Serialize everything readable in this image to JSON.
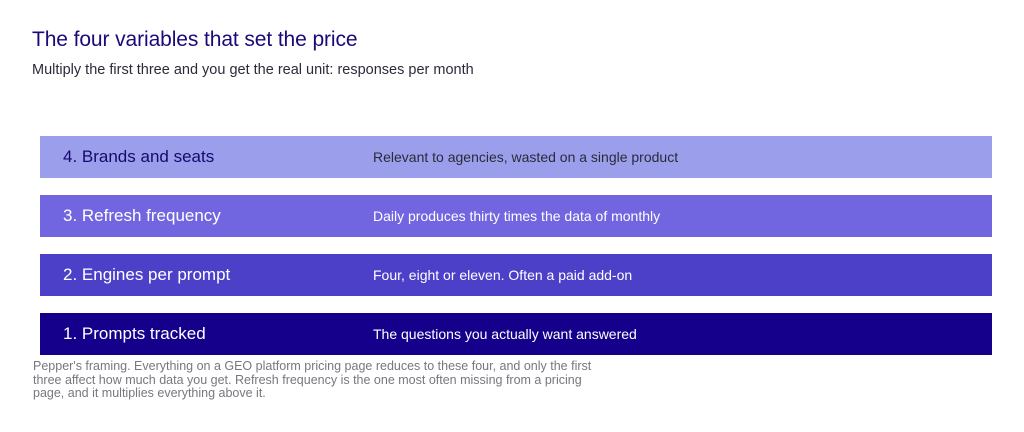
{
  "header": {
    "title": "The four variables that set the price",
    "subtitle": "Multiply the first three and you get the real unit: responses per month"
  },
  "layers": [
    {
      "label": "4. Brands and seats",
      "description": "Relevant to agencies, wasted on a single product",
      "color": "#9b9feb"
    },
    {
      "label": "3. Refresh frequency",
      "description": "Daily produces thirty times the data of monthly",
      "color": "#7165e0"
    },
    {
      "label": "2. Engines per prompt",
      "description": "Four, eight or eleven. Often a paid add-on",
      "color": "#4d40c8"
    },
    {
      "label": "1. Prompts tracked",
      "description": "The questions you actually want answered",
      "color": "#14008a"
    }
  ],
  "caption": "Pepper's framing. Everything on a GEO platform pricing page reduces to these four, and only the first three affect how much data you get. Refresh frequency is the one most often missing from a pricing page, and it multiplies everything above it."
}
